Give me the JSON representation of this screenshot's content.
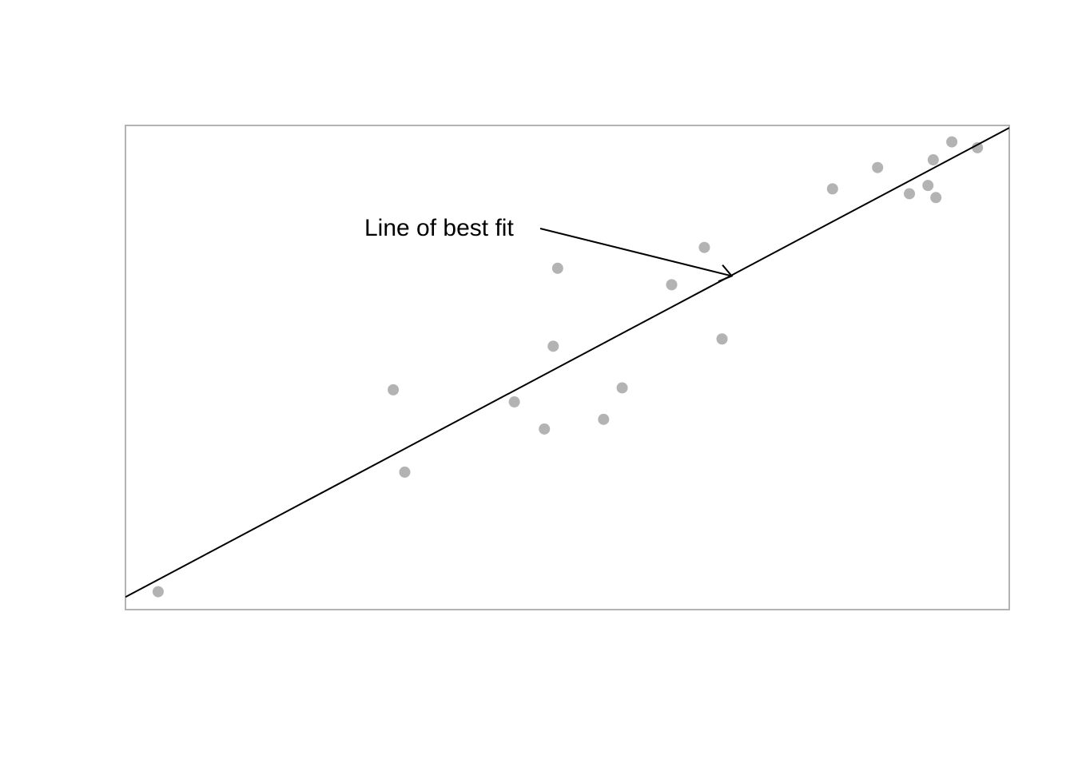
{
  "chart_data": {
    "type": "scatter",
    "title": "",
    "xlabel": "",
    "ylabel": "",
    "xlim": [
      0,
      100
    ],
    "ylim": [
      0,
      100
    ],
    "axes_visible": false,
    "grid": false,
    "legend": "none",
    "colors": {
      "points": "#b3b3b3",
      "fit_line": "#000000",
      "frame": "#b3b3b3"
    },
    "series": [
      {
        "points": [
          {
            "x": 3.7,
            "y": 3.7
          },
          {
            "x": 30.3,
            "y": 45.4
          },
          {
            "x": 31.6,
            "y": 28.4
          },
          {
            "x": 44.0,
            "y": 42.9
          },
          {
            "x": 47.4,
            "y": 37.3
          },
          {
            "x": 48.4,
            "y": 54.4
          },
          {
            "x": 48.9,
            "y": 70.5
          },
          {
            "x": 54.1,
            "y": 39.3
          },
          {
            "x": 56.2,
            "y": 45.8
          },
          {
            "x": 61.8,
            "y": 67.1
          },
          {
            "x": 65.5,
            "y": 74.8
          },
          {
            "x": 67.5,
            "y": 55.9
          },
          {
            "x": 80.0,
            "y": 86.9
          },
          {
            "x": 85.1,
            "y": 91.3
          },
          {
            "x": 88.7,
            "y": 85.9
          },
          {
            "x": 90.8,
            "y": 87.6
          },
          {
            "x": 91.4,
            "y": 92.9
          },
          {
            "x": 91.7,
            "y": 85.1
          },
          {
            "x": 93.5,
            "y": 96.6
          },
          {
            "x": 96.4,
            "y": 95.4
          }
        ]
      }
    ],
    "fit_line": {
      "x0": 0,
      "y0": 2.6,
      "x1": 100,
      "y1": 99.5
    },
    "annotations": [
      {
        "text": "Line of best fit",
        "arrow_to": {
          "x": 68.6,
          "y": 68.9
        }
      }
    ]
  }
}
